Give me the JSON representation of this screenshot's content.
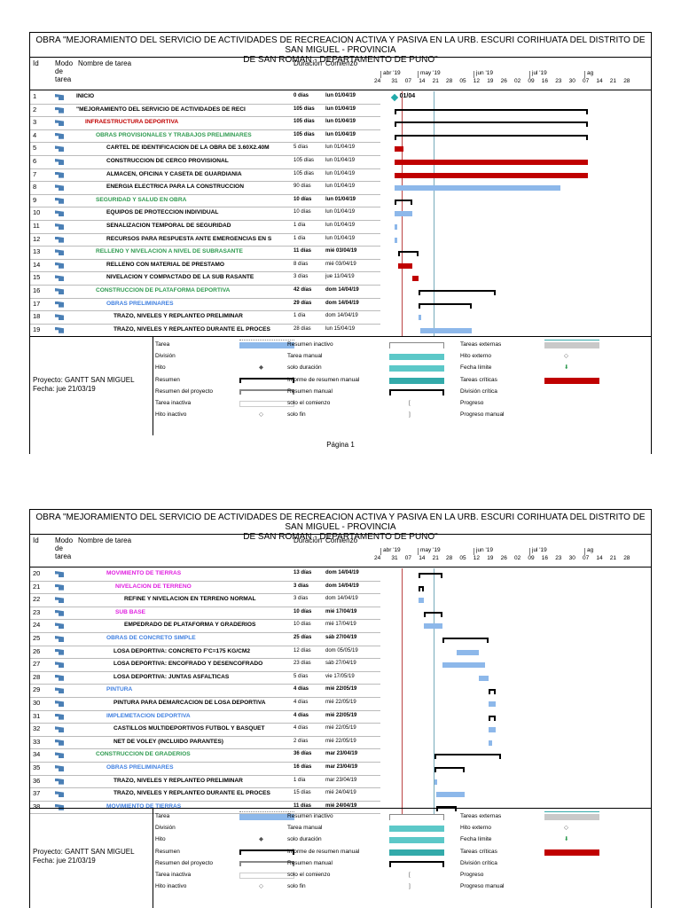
{
  "title_line1": "OBRA \"MEJORAMIENTO DEL SERVICIO DE ACTIVIDADES DE RECREACION ACTIVA Y PASIVA EN LA URB. ESCURI CORIHUATA DEL DISTRITO DE SAN MIGUEL - PROVINCIA",
  "title_line2": "DE SAN ROMAN - DEPARTAMENTO DE PUNO\"",
  "columns": {
    "id": "Id",
    "mode": "Modo de tarea",
    "name": "Nombre de tarea",
    "duration": "Duración",
    "start": "Comienzo"
  },
  "timescale": {
    "months": [
      "abr '19",
      "may '19",
      "jun '19",
      "jul '19",
      "ag"
    ],
    "days": [
      "24",
      "31",
      "07",
      "14",
      "21",
      "28",
      "05",
      "12",
      "19",
      "26",
      "02",
      "09",
      "16",
      "23",
      "30",
      "07",
      "14",
      "21",
      "28"
    ]
  },
  "colors": {
    "green": "#2e9a4f",
    "red": "#c00000",
    "pink": "#e020e0",
    "blue": "#3f7fe0",
    "bar_blue": "#8db8ea",
    "crit": "#c00000"
  },
  "chart_data": {
    "type": "gantt",
    "title": "OBRA MEJORAMIENTO DEL SERVICIO DE ACTIVIDADES DE RECREACION ACTIVA Y PASIVA",
    "x_start": "2019-03-24",
    "x_end": "2019-08-03",
    "page1_tasks": [
      {
        "id": "1",
        "name": "INICIO",
        "dur": "0 días",
        "start": "lun 01/04/19",
        "color": "#000",
        "kind": "milestone",
        "s": 8,
        "d": 0,
        "label": "01/04"
      },
      {
        "id": "2",
        "name": "\"MEJORAMIENTO DEL SERVICIO DE ACTIVIDADES DE RECI",
        "dur": "105 días",
        "start": "lun 01/04/19",
        "color": "#000",
        "kind": "summary",
        "s": 8,
        "d": 105
      },
      {
        "id": "3",
        "name": "INFRAESTRUCTURA DEPORTIVA",
        "dur": "105 días",
        "start": "lun 01/04/19",
        "color": "#c00000",
        "kind": "summary",
        "s": 8,
        "d": 105
      },
      {
        "id": "4",
        "name": "OBRAS PROVISIONALES Y TRABAJOS PRELIMINARES",
        "dur": "105 días",
        "start": "lun 01/04/19",
        "color": "#2e9a4f",
        "kind": "summary",
        "s": 8,
        "d": 105
      },
      {
        "id": "5",
        "name": "CARTEL DE IDENTIFICACION DE LA OBRA DE 3.60X2.40M",
        "dur": "5 días",
        "start": "lun 01/04/19",
        "color": "#000",
        "kind": "crit",
        "s": 8,
        "d": 5
      },
      {
        "id": "6",
        "name": "CONSTRUCCION DE CERCO PROVISIONAL",
        "dur": "105 días",
        "start": "lun 01/04/19",
        "color": "#000",
        "kind": "crit",
        "s": 8,
        "d": 105
      },
      {
        "id": "7",
        "name": "ALMACEN, OFICINA Y CASETA DE GUARDIANIA",
        "dur": "105 días",
        "start": "lun 01/04/19",
        "color": "#000",
        "kind": "crit",
        "s": 8,
        "d": 105
      },
      {
        "id": "8",
        "name": "ENERGIA ELECTRICA PARA LA CONSTRUCCION",
        "dur": "90 días",
        "start": "lun 01/04/19",
        "color": "#000",
        "kind": "task",
        "s": 8,
        "d": 90
      },
      {
        "id": "9",
        "name": "SEGURIDAD Y SALUD EN OBRA",
        "dur": "10 días",
        "start": "lun 01/04/19",
        "color": "#2e9a4f",
        "kind": "summary",
        "s": 8,
        "d": 10
      },
      {
        "id": "10",
        "name": "EQUIPOS DE PROTECCION INDIVIDUAL",
        "dur": "10 días",
        "start": "lun 01/04/19",
        "color": "#000",
        "kind": "task",
        "s": 8,
        "d": 10
      },
      {
        "id": "11",
        "name": "SENALIZACION TEMPORAL DE SEGURIDAD",
        "dur": "1 día",
        "start": "lun 01/04/19",
        "color": "#000",
        "kind": "task",
        "s": 8,
        "d": 1
      },
      {
        "id": "12",
        "name": "RECURSOS PARA RESPUESTA ANTE EMERGENCIAS EN S",
        "dur": "1 día",
        "start": "lun 01/04/19",
        "color": "#000",
        "kind": "task",
        "s": 8,
        "d": 1
      },
      {
        "id": "13",
        "name": "RELLENO Y NIVELACION A NIVEL DE SUBRASANTE",
        "dur": "11 días",
        "start": "mié 03/04/19",
        "color": "#2e9a4f",
        "kind": "summary",
        "s": 10,
        "d": 11
      },
      {
        "id": "14",
        "name": "RELLENO CON MATERIAL DE PRESTAMO",
        "dur": "8 días",
        "start": "mié 03/04/19",
        "color": "#000",
        "kind": "crit",
        "s": 10,
        "d": 8
      },
      {
        "id": "15",
        "name": "NIVELACION Y COMPACTADO DE LA SUB RASANTE",
        "dur": "3 días",
        "start": "jue 11/04/19",
        "color": "#000",
        "kind": "crit",
        "s": 18,
        "d": 3
      },
      {
        "id": "16",
        "name": "CONSTRUCCION DE PLATAFORMA DEPORTIVA",
        "dur": "42 días",
        "start": "dom 14/04/19",
        "color": "#2e9a4f",
        "kind": "summary",
        "s": 21,
        "d": 42
      },
      {
        "id": "17",
        "name": "OBRAS PRELIMINARES",
        "dur": "29 días",
        "start": "dom 14/04/19",
        "color": "#3f7fe0",
        "kind": "summary",
        "s": 21,
        "d": 29
      },
      {
        "id": "18",
        "name": "TRAZO, NIVELES Y REPLANTEO PRELIMINAR",
        "dur": "1 día",
        "start": "dom 14/04/19",
        "color": "#000",
        "kind": "task",
        "s": 21,
        "d": 1
      },
      {
        "id": "19",
        "name": "TRAZO, NIVELES Y REPLANTEO DURANTE EL PROCES",
        "dur": "28 días",
        "start": "lun 15/04/19",
        "color": "#000",
        "kind": "task",
        "s": 22,
        "d": 28
      }
    ],
    "page2_tasks": [
      {
        "id": "20",
        "name": "MOVIMIENTO DE TIERRAS",
        "dur": "13 días",
        "start": "dom 14/04/19",
        "color": "#e020e0",
        "kind": "summary",
        "s": 21,
        "d": 13
      },
      {
        "id": "21",
        "name": "NIVELACION DE TERRENO",
        "dur": "3 días",
        "start": "dom 14/04/19",
        "color": "#e020e0",
        "kind": "summary",
        "s": 21,
        "d": 3
      },
      {
        "id": "22",
        "name": "REFINE Y NIVELACION EN TERRENO NORMAL",
        "dur": "3 días",
        "start": "dom 14/04/19",
        "color": "#000",
        "kind": "task",
        "s": 21,
        "d": 3
      },
      {
        "id": "23",
        "name": "SUB BASE",
        "dur": "10 días",
        "start": "mié 17/04/19",
        "color": "#e020e0",
        "kind": "summary",
        "s": 24,
        "d": 10
      },
      {
        "id": "24",
        "name": "EMPEDRADO DE PLATAFORMA Y GRADERIOS",
        "dur": "10 días",
        "start": "mié 17/04/19",
        "color": "#000",
        "kind": "task",
        "s": 24,
        "d": 10
      },
      {
        "id": "25",
        "name": "OBRAS DE CONCRETO SIMPLE",
        "dur": "25 días",
        "start": "sáb 27/04/19",
        "color": "#3f7fe0",
        "kind": "summary",
        "s": 34,
        "d": 25
      },
      {
        "id": "26",
        "name": "LOSA DEPORTIVA: CONCRETO F'C=175 KG/CM2",
        "dur": "12 días",
        "start": "dom 05/05/19",
        "color": "#000",
        "kind": "task",
        "s": 42,
        "d": 12
      },
      {
        "id": "27",
        "name": "LOSA DEPORTIVA: ENCOFRADO Y DESENCOFRADO",
        "dur": "23 días",
        "start": "sáb 27/04/19",
        "color": "#000",
        "kind": "task",
        "s": 34,
        "d": 23
      },
      {
        "id": "28",
        "name": "LOSA DEPORTIVA: JUNTAS ASFALTICAS",
        "dur": "5 días",
        "start": "vie 17/05/19",
        "color": "#000",
        "kind": "task",
        "s": 54,
        "d": 5
      },
      {
        "id": "29",
        "name": "PINTURA",
        "dur": "4 días",
        "start": "mié 22/05/19",
        "color": "#3f7fe0",
        "kind": "summary",
        "s": 59,
        "d": 4
      },
      {
        "id": "30",
        "name": "PINTURA PARA DEMARCACION DE LOSA DEPORTIVA",
        "dur": "4 días",
        "start": "mié 22/05/19",
        "color": "#000",
        "kind": "task",
        "s": 59,
        "d": 4
      },
      {
        "id": "31",
        "name": "IMPLEMETACION DEPORTIVA",
        "dur": "4 días",
        "start": "mié 22/05/19",
        "color": "#3f7fe0",
        "kind": "summary",
        "s": 59,
        "d": 4
      },
      {
        "id": "32",
        "name": "CASTILLOS MULTIDEPORTIVOS FUTBOL Y BASQUET",
        "dur": "4 días",
        "start": "mié 22/05/19",
        "color": "#000",
        "kind": "task",
        "s": 59,
        "d": 4
      },
      {
        "id": "33",
        "name": "NET DE VOLEY (INCLUIDO PARANTES)",
        "dur": "2 días",
        "start": "mié 22/05/19",
        "color": "#000",
        "kind": "task",
        "s": 59,
        "d": 2
      },
      {
        "id": "34",
        "name": "CONSTRUCCION DE GRADERIOS",
        "dur": "36 días",
        "start": "mar 23/04/19",
        "color": "#2e9a4f",
        "kind": "summary",
        "s": 30,
        "d": 36
      },
      {
        "id": "35",
        "name": "OBRAS PRELIMINARES",
        "dur": "16 días",
        "start": "mar 23/04/19",
        "color": "#3f7fe0",
        "kind": "summary",
        "s": 30,
        "d": 16
      },
      {
        "id": "36",
        "name": "TRAZO, NIVELES Y REPLANTEO PRELIMINAR",
        "dur": "1 día",
        "start": "mar 23/04/19",
        "color": "#000",
        "kind": "task",
        "s": 30,
        "d": 1
      },
      {
        "id": "37",
        "name": "TRAZO, NIVELES Y REPLANTEO DURANTE EL PROCES",
        "dur": "15 días",
        "start": "mié 24/04/19",
        "color": "#000",
        "kind": "task",
        "s": 31,
        "d": 15
      },
      {
        "id": "38",
        "name": "MOVIMIENTO DE TIERRAS",
        "dur": "11 días",
        "start": "mié 24/04/19",
        "color": "#3f7fe0",
        "kind": "summary",
        "s": 31,
        "d": 11
      }
    ]
  },
  "legend": {
    "col1": [
      "Tarea",
      "División",
      "Hito",
      "Resumen",
      "Resumen del proyecto",
      "Tarea inactiva",
      "Hito inactivo"
    ],
    "col2": [
      "Resumen inactivo",
      "Tarea manual",
      "solo duración",
      "Informe de resumen manual",
      "Resumen manual",
      "solo el comienzo",
      "solo fin"
    ],
    "col3": [
      "Tareas externas",
      "Hito externo",
      "Fecha límite",
      "Tareas críticas",
      "División crítica",
      "Progreso",
      "Progreso manual"
    ]
  },
  "project": {
    "name": "Proyecto: GANTT SAN MIGUEL",
    "date": "Fecha: jue 21/03/19"
  },
  "page_label": "Página 1"
}
